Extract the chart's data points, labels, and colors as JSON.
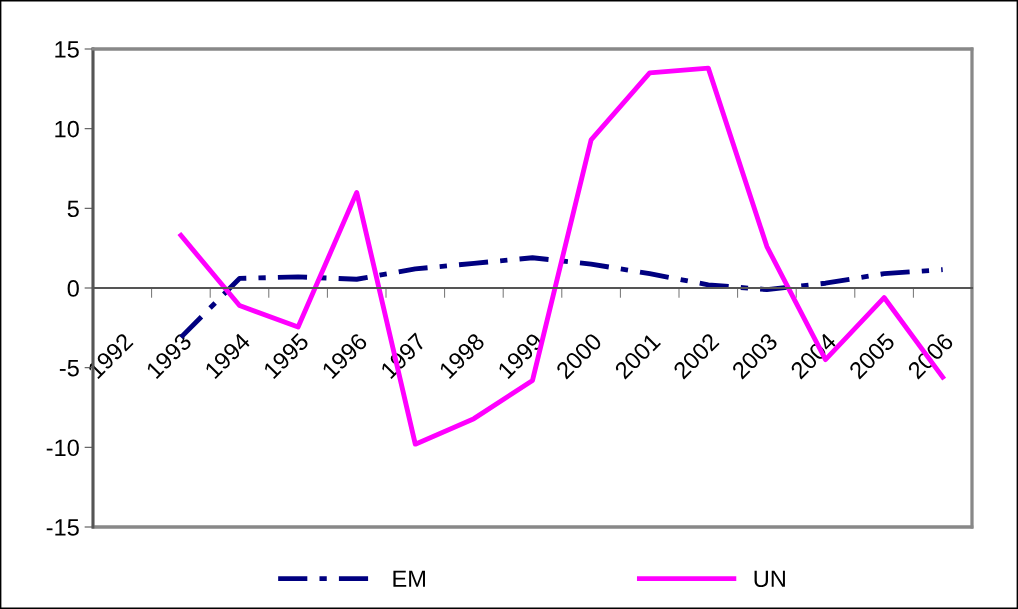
{
  "chart_data": {
    "type": "line",
    "categories": [
      "1992",
      "1993",
      "1994",
      "1995",
      "1996",
      "1997",
      "1998",
      "1999",
      "2000",
      "2001",
      "2002",
      "2003",
      "2004",
      "2005",
      "2006"
    ],
    "series": [
      {
        "name": "EM",
        "color": "#000080",
        "line_style": "dashed",
        "values": [
          null,
          -3.1,
          0.6,
          0.7,
          0.55,
          1.2,
          1.55,
          1.9,
          1.5,
          0.9,
          0.2,
          -0.1,
          0.3,
          0.9,
          1.15
        ]
      },
      {
        "name": "UN",
        "color": "#ff00ff",
        "line_style": "solid",
        "values": [
          null,
          3.3,
          -1.1,
          -2.45,
          6.0,
          -9.8,
          -8.2,
          -5.8,
          9.3,
          13.5,
          13.8,
          2.6,
          -4.5,
          -0.6,
          -5.6
        ]
      }
    ],
    "ylim": [
      -15,
      15
    ],
    "yticks": [
      -15,
      -10,
      -5,
      0,
      5,
      10,
      15
    ],
    "grid": false,
    "legend": "bottom",
    "marker": "none"
  }
}
